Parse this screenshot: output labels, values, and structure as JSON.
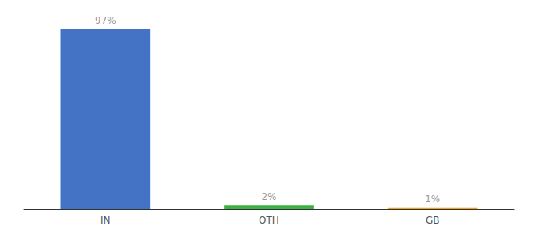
{
  "chart_data": {
    "type": "bar",
    "categories": [
      "IN",
      "OTH",
      "GB"
    ],
    "values": [
      97,
      2,
      1
    ],
    "value_labels": [
      "97%",
      "2%",
      "1%"
    ],
    "colors": [
      "#4472c4",
      "#3cb044",
      "#f0a020"
    ],
    "ylim": [
      0,
      100
    ],
    "data_labels": true,
    "tick_labels": "x",
    "grid": false
  }
}
